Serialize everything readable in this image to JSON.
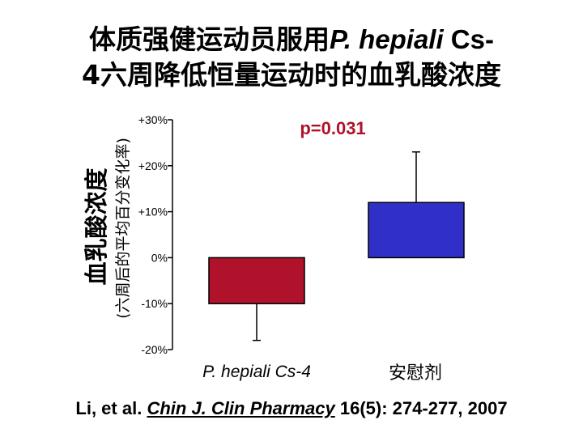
{
  "title": {
    "line1_cjk": "体质强健运动员服用",
    "line1_species": "P. hepiali",
    "line1_rest": " Cs-",
    "line2": "4六周降低恒量运动时的血乳酸浓度"
  },
  "chart_data": {
    "type": "bar",
    "categories": [
      "P. hepiali Cs-4",
      "安慰剂"
    ],
    "values": [
      -10,
      12
    ],
    "error_high": [
      null,
      23
    ],
    "error_low": [
      -18,
      null
    ],
    "colors": [
      "#b0122c",
      "#3030c8"
    ],
    "ylabel": "血乳酸浓度",
    "ylabel_sub": "(六周后的平均百分变化率)",
    "yticks": [
      "+30%",
      "+20%",
      "+10%",
      "0%",
      "-10%",
      "-20%"
    ],
    "ytick_values": [
      30,
      20,
      10,
      0,
      -10,
      -20
    ],
    "ylim": [
      -20,
      30
    ],
    "annotation": "p=0.031",
    "grid": false
  },
  "citation": {
    "authors": "Li, et al.",
    "journal": "Chin J. Clin Pharmacy",
    "details": "16(5): 274-277, 2007"
  }
}
